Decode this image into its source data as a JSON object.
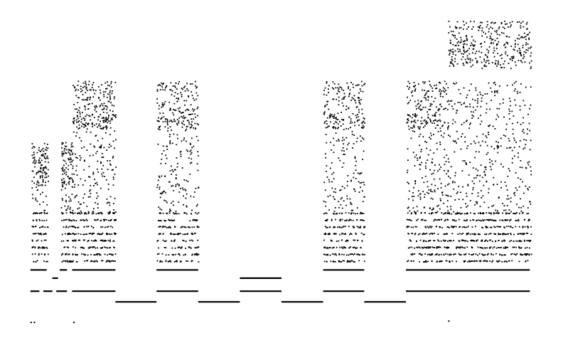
{
  "chart_data": {
    "type": "scatter",
    "title": "",
    "xlabel": "",
    "ylabel": "",
    "grid": false,
    "legend": "none",
    "axes_visible": false,
    "colors": {
      "background": "#ffffff",
      "marks": "#000000"
    },
    "xlim": [
      0,
      100
    ],
    "ylim": [
      0,
      100
    ],
    "segments": [
      {
        "x0": 20.5,
        "x1": 27.8,
        "y": 12.0
      },
      {
        "x0": 35.2,
        "x1": 42.6,
        "y": 12.0
      },
      {
        "x0": 50.0,
        "x1": 57.4,
        "y": 12.0
      },
      {
        "x0": 64.7,
        "x1": 72.1,
        "y": 12.0
      },
      {
        "x0": 42.6,
        "x1": 50.0,
        "y": 15.1
      },
      {
        "x0": 5.4,
        "x1": 7.0,
        "y": 15.1
      },
      {
        "x0": 7.7,
        "x1": 9.3,
        "y": 15.1
      },
      {
        "x0": 10.0,
        "x1": 11.9,
        "y": 15.1
      },
      {
        "x0": 12.8,
        "x1": 20.5,
        "y": 15.1
      },
      {
        "x0": 27.8,
        "x1": 35.2,
        "y": 15.1
      },
      {
        "x0": 57.4,
        "x1": 64.7,
        "y": 15.1
      },
      {
        "x0": 72.1,
        "x1": 94.1,
        "y": 15.1
      },
      {
        "x0": 42.6,
        "x1": 50.0,
        "y": 18.9
      },
      {
        "x0": 9.3,
        "x1": 10.3,
        "y": 18.9
      },
      {
        "x0": 12.8,
        "x1": 20.5,
        "y": 21.3
      },
      {
        "x0": 27.8,
        "x1": 35.2,
        "y": 21.3
      },
      {
        "x0": 57.4,
        "x1": 64.7,
        "y": 21.3
      },
      {
        "x0": 72.1,
        "x1": 94.1,
        "y": 21.3
      },
      {
        "x0": 5.4,
        "x1": 8.3,
        "y": 21.3
      },
      {
        "x0": 10.6,
        "x1": 11.9,
        "y": 21.3
      }
    ],
    "clusters": [
      {
        "x0": 5.6,
        "x1": 8.5,
        "y0": 24.0,
        "y1": 58.5,
        "n": 220
      },
      {
        "x0": 10.8,
        "x1": 12.9,
        "y0": 24.0,
        "y1": 59.0,
        "n": 180
      },
      {
        "x0": 12.8,
        "x1": 20.5,
        "y0": 24.0,
        "y1": 76.5,
        "n": 620
      },
      {
        "x0": 27.8,
        "x1": 35.2,
        "y0": 24.0,
        "y1": 76.5,
        "n": 520
      },
      {
        "x0": 57.4,
        "x1": 64.7,
        "y0": 24.0,
        "y1": 76.5,
        "n": 520
      },
      {
        "x0": 72.1,
        "x1": 79.6,
        "y0": 24.0,
        "y1": 76.5,
        "n": 560
      },
      {
        "x0": 79.6,
        "x1": 94.3,
        "y0": 24.0,
        "y1": 94.0,
        "n": 1150
      }
    ],
    "outliers": [
      {
        "x": 5.4,
        "y": 6.2
      },
      {
        "x": 6.0,
        "y": 6.2
      },
      {
        "x": 13.0,
        "y": 6.2
      },
      {
        "x": 79.6,
        "y": 6.6
      }
    ]
  }
}
